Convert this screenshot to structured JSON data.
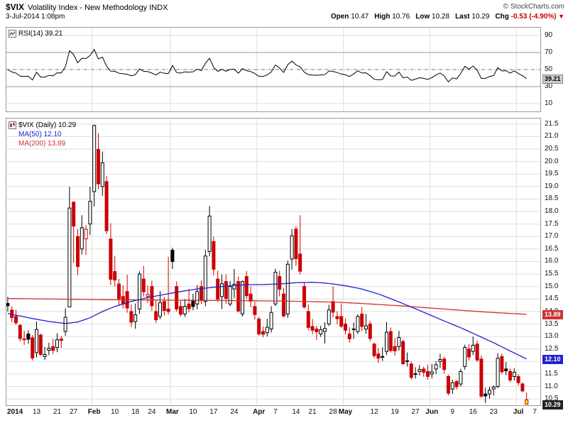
{
  "header": {
    "symbol": "$VIX",
    "title": "Volatility Index - New Methodology INDX",
    "credit": "© StockCharts.com",
    "datetime": "3-Jul-2014 1:08pm",
    "quote": [
      {
        "label": "Open",
        "value": "10.47"
      },
      {
        "label": "High",
        "value": "10.76"
      },
      {
        "label": "Low",
        "value": "10.28"
      },
      {
        "label": "Last",
        "value": "10.29"
      },
      {
        "label": "Chg",
        "value": "-0.53 (-4.90%)",
        "down": true
      }
    ],
    "down_arrow": "▼"
  },
  "rsi_panel": {
    "label": "RSI(14) 39.21",
    "value_label": "39.21"
  },
  "price_panel": {
    "legend_main": "$VIX (Daily) 10.29",
    "legend_ma50": "MA(50) 12.10",
    "legend_ma200": "MA(200) 13.89",
    "ma50_box": "12.10",
    "ma200_box": "13.89",
    "last_box": "10.29"
  },
  "colors": {
    "candle_up": "#000000",
    "candle_down": "#cc0000",
    "ma50": "#2222cc",
    "ma200": "#cc3333",
    "grid": "#dedede",
    "border": "#999999",
    "rsi_line": "#000000",
    "rsi_band": "#999999",
    "rsi_mid": "#777777",
    "last_box_bg": "#222222",
    "rsi_box_bg": "#cccccc"
  },
  "chart_data": {
    "type": "candlestick",
    "symbol": "$VIX",
    "timeframe": "Daily",
    "title": "$VIX Volatility Index - New Methodology INDX",
    "ylim": [
      10.22,
      21.75
    ],
    "y_tick_step": 0.5,
    "y_ticks": [
      "21.5",
      "21.0",
      "20.5",
      "20.0",
      "19.5",
      "19.0",
      "18.5",
      "18.0",
      "17.5",
      "17.0",
      "16.5",
      "16.0",
      "15.5",
      "15.0",
      "14.5",
      "14.0",
      "13.5",
      "13.0",
      "12.5",
      "12.0",
      "11.5",
      "11.0",
      "10.5"
    ],
    "slots": 130,
    "month_gridline_indices": [
      21,
      40,
      61,
      82,
      103,
      124
    ],
    "x_ticks": [
      {
        "label": "2014",
        "i": 0,
        "bold": true,
        "align": "left"
      },
      {
        "label": "13",
        "i": 7
      },
      {
        "label": "21",
        "i": 12
      },
      {
        "label": "27",
        "i": 16
      },
      {
        "label": "Feb",
        "i": 21,
        "bold": true
      },
      {
        "label": "10",
        "i": 26
      },
      {
        "label": "18",
        "i": 31
      },
      {
        "label": "24",
        "i": 35
      },
      {
        "label": "Mar",
        "i": 40,
        "bold": true
      },
      {
        "label": "10",
        "i": 45
      },
      {
        "label": "17",
        "i": 50
      },
      {
        "label": "24",
        "i": 55
      },
      {
        "label": "Apr",
        "i": 61,
        "bold": true
      },
      {
        "label": "7",
        "i": 65
      },
      {
        "label": "14",
        "i": 70
      },
      {
        "label": "21",
        "i": 74
      },
      {
        "label": "28",
        "i": 79
      },
      {
        "label": "May",
        "i": 82,
        "bold": true
      },
      {
        "label": "12",
        "i": 89
      },
      {
        "label": "19",
        "i": 94
      },
      {
        "label": "27",
        "i": 99
      },
      {
        "label": "Jun",
        "i": 103,
        "bold": true
      },
      {
        "label": "9",
        "i": 108
      },
      {
        "label": "16",
        "i": 113
      },
      {
        "label": "23",
        "i": 118
      },
      {
        "label": "Jul",
        "i": 124,
        "bold": true
      },
      {
        "label": "7",
        "i": 128
      }
    ],
    "overlays": {
      "ma50": {
        "name": "MA(50)",
        "last": 12.1,
        "points": [
          [
            0,
            13.92
          ],
          [
            6,
            13.72
          ],
          [
            10,
            13.6
          ],
          [
            14,
            13.52
          ],
          [
            17,
            13.58
          ],
          [
            20,
            13.75
          ],
          [
            23,
            14.0
          ],
          [
            26,
            14.2
          ],
          [
            30,
            14.4
          ],
          [
            34,
            14.56
          ],
          [
            38,
            14.68
          ],
          [
            42,
            14.8
          ],
          [
            46,
            14.9
          ],
          [
            50,
            14.97
          ],
          [
            54,
            15.03
          ],
          [
            58,
            15.07
          ],
          [
            62,
            15.08
          ],
          [
            66,
            15.1
          ],
          [
            70,
            15.15
          ],
          [
            74,
            15.17
          ],
          [
            77,
            15.14
          ],
          [
            80,
            15.08
          ],
          [
            83,
            15.0
          ],
          [
            86,
            14.9
          ],
          [
            90,
            14.7
          ],
          [
            94,
            14.45
          ],
          [
            98,
            14.18
          ],
          [
            102,
            13.9
          ],
          [
            106,
            13.62
          ],
          [
            110,
            13.35
          ],
          [
            114,
            13.05
          ],
          [
            118,
            12.75
          ],
          [
            122,
            12.42
          ],
          [
            126,
            12.1
          ]
        ]
      },
      "ma200": {
        "name": "MA(200)",
        "last": 13.89,
        "points": [
          [
            0,
            14.52
          ],
          [
            20,
            14.48
          ],
          [
            40,
            14.45
          ],
          [
            60,
            14.43
          ],
          [
            70,
            14.41
          ],
          [
            80,
            14.37
          ],
          [
            85,
            14.33
          ],
          [
            90,
            14.28
          ],
          [
            95,
            14.23
          ],
          [
            100,
            14.17
          ],
          [
            105,
            14.11
          ],
          [
            110,
            14.05
          ],
          [
            115,
            13.99
          ],
          [
            120,
            13.94
          ],
          [
            126,
            13.89
          ]
        ]
      }
    },
    "indicator_rsi": {
      "name": "RSI",
      "period": 14,
      "last": 39.21,
      "y_ticks": [
        90,
        70,
        50,
        30,
        10
      ],
      "upper": 70,
      "lower": 30,
      "mid": 50,
      "seed_gain": 0.3,
      "seed_loss": 0.3
    },
    "last_candle_highlight": "#ffee00",
    "candles": [
      [
        "Jan 2",
        14.32,
        14.59,
        14.0,
        14.23
      ],
      [
        "Jan 3",
        14.06,
        14.22,
        13.57,
        13.76
      ],
      [
        "Jan 6",
        13.8,
        14.07,
        13.46,
        13.55
      ],
      [
        "Jan 7",
        13.45,
        13.5,
        12.8,
        12.92
      ],
      [
        "Jan 8",
        12.9,
        13.24,
        12.66,
        12.87
      ],
      [
        "Jan 9",
        13.1,
        13.25,
        12.71,
        12.89
      ],
      [
        "Jan 10",
        12.95,
        13.06,
        12.04,
        12.14
      ],
      [
        "Jan 13",
        12.35,
        13.6,
        12.16,
        13.28
      ],
      [
        "Jan 14",
        13.06,
        13.11,
        12.23,
        12.28
      ],
      [
        "Jan 15",
        12.2,
        12.58,
        12.06,
        12.28
      ],
      [
        "Jan 16",
        12.45,
        12.75,
        12.25,
        12.53
      ],
      [
        "Jan 17",
        12.6,
        12.91,
        12.3,
        12.44
      ],
      [
        "Jan 21",
        12.56,
        13.13,
        12.37,
        12.87
      ],
      [
        "Jan 22",
        12.9,
        13.02,
        12.54,
        12.84
      ],
      [
        "Jan 23",
        13.2,
        14.13,
        13.03,
        13.77
      ],
      [
        "Jan 24",
        14.18,
        18.99,
        14.18,
        18.14
      ],
      [
        "Jan 27",
        18.38,
        18.4,
        15.95,
        17.42
      ],
      [
        "Jan 28",
        17.0,
        17.3,
        15.45,
        15.8
      ],
      [
        "Jan 29",
        16.5,
        17.85,
        16.28,
        17.35
      ],
      [
        "Jan 30",
        16.9,
        17.45,
        16.26,
        17.29
      ],
      [
        "Jan 31",
        17.5,
        18.99,
        17.06,
        18.41
      ],
      [
        "Feb 3",
        18.8,
        21.48,
        18.2,
        21.44
      ],
      [
        "Feb 4",
        20.49,
        21.13,
        18.9,
        19.11
      ],
      [
        "Feb 5",
        19.0,
        20.4,
        18.63,
        19.95
      ],
      [
        "Feb 6",
        19.2,
        19.42,
        17.1,
        17.23
      ],
      [
        "Feb 7",
        16.9,
        17.53,
        15.06,
        15.29
      ],
      [
        "Feb 10",
        15.6,
        16.22,
        15.0,
        15.26
      ],
      [
        "Feb 11",
        15.1,
        15.3,
        14.23,
        14.51
      ],
      [
        "Feb 12",
        14.6,
        15.05,
        14.12,
        14.3
      ],
      [
        "Feb 13",
        14.8,
        15.47,
        13.95,
        14.14
      ],
      [
        "Feb 14",
        14.0,
        14.28,
        13.39,
        13.57
      ],
      [
        "Feb 18",
        13.6,
        14.32,
        13.31,
        13.87
      ],
      [
        "Feb 19",
        14.1,
        15.61,
        13.9,
        15.5
      ],
      [
        "Feb 20",
        15.3,
        15.82,
        14.6,
        14.79
      ],
      [
        "Feb 21",
        14.6,
        15.05,
        14.34,
        14.68
      ],
      [
        "Feb 24",
        15.0,
        15.24,
        14.02,
        14.23
      ],
      [
        "Feb 25",
        14.0,
        14.43,
        13.54,
        13.67
      ],
      [
        "Feb 26",
        13.8,
        14.82,
        13.69,
        14.35
      ],
      [
        "Feb 27",
        14.4,
        14.59,
        13.84,
        14.04
      ],
      [
        "Feb 28",
        14.1,
        16.19,
        13.88,
        14.0
      ],
      [
        "Mar 3",
        16.45,
        16.55,
        15.7,
        16.0
      ],
      [
        "Mar 4",
        15.0,
        15.2,
        14.0,
        14.1
      ],
      [
        "Mar 5",
        14.2,
        14.43,
        13.8,
        13.89
      ],
      [
        "Mar 6",
        13.9,
        14.5,
        13.79,
        14.21
      ],
      [
        "Mar 7",
        14.3,
        14.9,
        13.96,
        14.11
      ],
      [
        "Mar 10",
        14.45,
        14.71,
        14.05,
        14.2
      ],
      [
        "Mar 11",
        14.3,
        15.06,
        14.09,
        14.8
      ],
      [
        "Mar 12",
        15.0,
        15.24,
        14.31,
        14.47
      ],
      [
        "Mar 13",
        14.4,
        16.46,
        14.21,
        16.22
      ],
      [
        "Mar 14",
        16.4,
        18.22,
        16.2,
        17.82
      ],
      [
        "Mar 17",
        16.8,
        17.0,
        15.44,
        15.69
      ],
      [
        "Mar 18",
        15.3,
        15.63,
        14.38,
        14.49
      ],
      [
        "Mar 19",
        14.6,
        15.48,
        14.1,
        15.11
      ],
      [
        "Mar 20",
        15.2,
        15.48,
        14.31,
        14.52
      ],
      [
        "Mar 21",
        14.3,
        15.22,
        14.21,
        15.0
      ],
      [
        "Mar 24",
        14.9,
        15.7,
        14.54,
        15.09
      ],
      [
        "Mar 25",
        15.2,
        15.4,
        13.96,
        14.02
      ],
      [
        "Mar 26",
        13.9,
        15.24,
        13.8,
        15.2
      ],
      [
        "Mar 27",
        15.4,
        15.62,
        14.5,
        14.63
      ],
      [
        "Mar 28",
        14.7,
        15.0,
        14.17,
        14.41
      ],
      [
        "Mar 31",
        14.2,
        14.39,
        13.68,
        13.88
      ],
      [
        "Apr 1",
        13.7,
        13.78,
        13.03,
        13.1
      ],
      [
        "Apr 2",
        13.2,
        13.4,
        12.97,
        13.09
      ],
      [
        "Apr 3",
        13.15,
        13.71,
        13.0,
        13.37
      ],
      [
        "Apr 4",
        13.3,
        14.21,
        13.16,
        13.96
      ],
      [
        "Apr 7",
        14.3,
        15.71,
        14.22,
        15.57
      ],
      [
        "Apr 8",
        15.4,
        15.63,
        14.6,
        14.89
      ],
      [
        "Apr 9",
        14.7,
        14.94,
        13.77,
        13.82
      ],
      [
        "Apr 10",
        13.9,
        16.04,
        13.75,
        15.89
      ],
      [
        "Apr 11",
        16.1,
        17.3,
        15.68,
        17.03
      ],
      [
        "Apr 14",
        17.3,
        17.42,
        15.82,
        16.11
      ],
      [
        "Apr 15",
        16.3,
        17.85,
        15.48,
        15.61
      ],
      [
        "Apr 16",
        15.0,
        15.18,
        14.12,
        14.18
      ],
      [
        "Apr 17",
        14.0,
        14.29,
        13.25,
        13.36
      ],
      [
        "Apr 21",
        13.4,
        13.7,
        13.08,
        13.25
      ],
      [
        "Apr 22",
        13.3,
        13.43,
        12.86,
        13.19
      ],
      [
        "Apr 23",
        13.1,
        13.43,
        12.99,
        13.27
      ],
      [
        "Apr 24",
        13.2,
        13.57,
        12.72,
        13.32
      ],
      [
        "Apr 25",
        13.5,
        14.27,
        13.42,
        14.06
      ],
      [
        "Apr 28",
        14.4,
        15.0,
        13.76,
        13.97
      ],
      [
        "Apr 29",
        13.8,
        14.01,
        13.49,
        13.71
      ],
      [
        "Apr 30",
        13.8,
        14.32,
        13.33,
        13.41
      ],
      [
        "May 1",
        13.5,
        13.72,
        13.08,
        13.25
      ],
      [
        "May 2",
        13.1,
        13.37,
        12.76,
        12.91
      ],
      [
        "May 5",
        13.3,
        13.56,
        12.9,
        13.29
      ],
      [
        "May 6",
        13.2,
        13.89,
        13.1,
        13.8
      ],
      [
        "May 7",
        13.9,
        14.18,
        13.21,
        13.4
      ],
      [
        "May 8",
        13.3,
        13.9,
        13.11,
        13.43
      ],
      [
        "May 9",
        13.5,
        13.61,
        12.81,
        12.92
      ],
      [
        "May 12",
        12.7,
        12.76,
        12.13,
        12.23
      ],
      [
        "May 13",
        12.3,
        12.54,
        11.94,
        12.13
      ],
      [
        "May 14",
        12.2,
        12.57,
        12.02,
        12.17
      ],
      [
        "May 15",
        12.4,
        13.58,
        12.26,
        13.17
      ],
      [
        "May 16",
        13.2,
        13.36,
        12.36,
        12.44
      ],
      [
        "May 19",
        12.6,
        12.94,
        12.24,
        12.42
      ],
      [
        "May 20",
        12.6,
        13.23,
        12.43,
        12.96
      ],
      [
        "May 21",
        12.8,
        12.87,
        11.86,
        11.91
      ],
      [
        "May 22",
        12.0,
        12.36,
        11.8,
        12.03
      ],
      [
        "May 23",
        11.9,
        11.99,
        11.28,
        11.36
      ],
      [
        "May 27",
        11.5,
        11.77,
        11.31,
        11.51
      ],
      [
        "May 28",
        11.6,
        11.86,
        11.44,
        11.68
      ],
      [
        "May 29",
        11.7,
        11.8,
        11.39,
        11.57
      ],
      [
        "May 30",
        11.6,
        11.87,
        11.27,
        11.4
      ],
      [
        "Jun 2",
        11.5,
        11.9,
        11.33,
        11.58
      ],
      [
        "Jun 3",
        11.7,
        12.01,
        11.49,
        11.87
      ],
      [
        "Jun 4",
        12.0,
        12.31,
        11.74,
        12.08
      ],
      [
        "Jun 5",
        12.1,
        12.19,
        11.52,
        11.68
      ],
      [
        "Jun 6",
        11.4,
        11.47,
        10.65,
        10.73
      ],
      [
        "Jun 9",
        10.9,
        11.27,
        10.7,
        11.15
      ],
      [
        "Jun 10",
        11.2,
        11.26,
        10.88,
        10.99
      ],
      [
        "Jun 11",
        11.1,
        11.71,
        11.0,
        11.6
      ],
      [
        "Jun 12",
        11.8,
        12.67,
        11.67,
        12.56
      ],
      [
        "Jun 13",
        12.5,
        12.69,
        12.05,
        12.18
      ],
      [
        "Jun 16",
        12.4,
        13.0,
        12.26,
        12.65
      ],
      [
        "Jun 17",
        12.7,
        12.84,
        11.98,
        12.06
      ],
      [
        "Jun 18",
        12.1,
        12.24,
        10.55,
        10.61
      ],
      [
        "Jun 19",
        10.7,
        10.95,
        10.34,
        10.62
      ],
      [
        "Jun 20",
        10.7,
        10.99,
        10.51,
        10.85
      ],
      [
        "Jun 23",
        10.9,
        11.04,
        10.64,
        10.98
      ],
      [
        "Jun 24",
        11.0,
        12.33,
        10.93,
        12.13
      ],
      [
        "Jun 25",
        12.2,
        12.31,
        11.49,
        11.59
      ],
      [
        "Jun 26",
        11.7,
        11.98,
        11.45,
        11.63
      ],
      [
        "Jun 27",
        11.6,
        11.72,
        11.17,
        11.26
      ],
      [
        "Jun 30",
        11.4,
        11.73,
        11.24,
        11.57
      ],
      [
        "Jul 1",
        11.4,
        11.48,
        11.04,
        11.15
      ],
      [
        "Jul 2",
        11.1,
        11.16,
        10.77,
        10.82
      ],
      [
        "Jul 3",
        10.47,
        10.76,
        10.28,
        10.29
      ]
    ]
  }
}
